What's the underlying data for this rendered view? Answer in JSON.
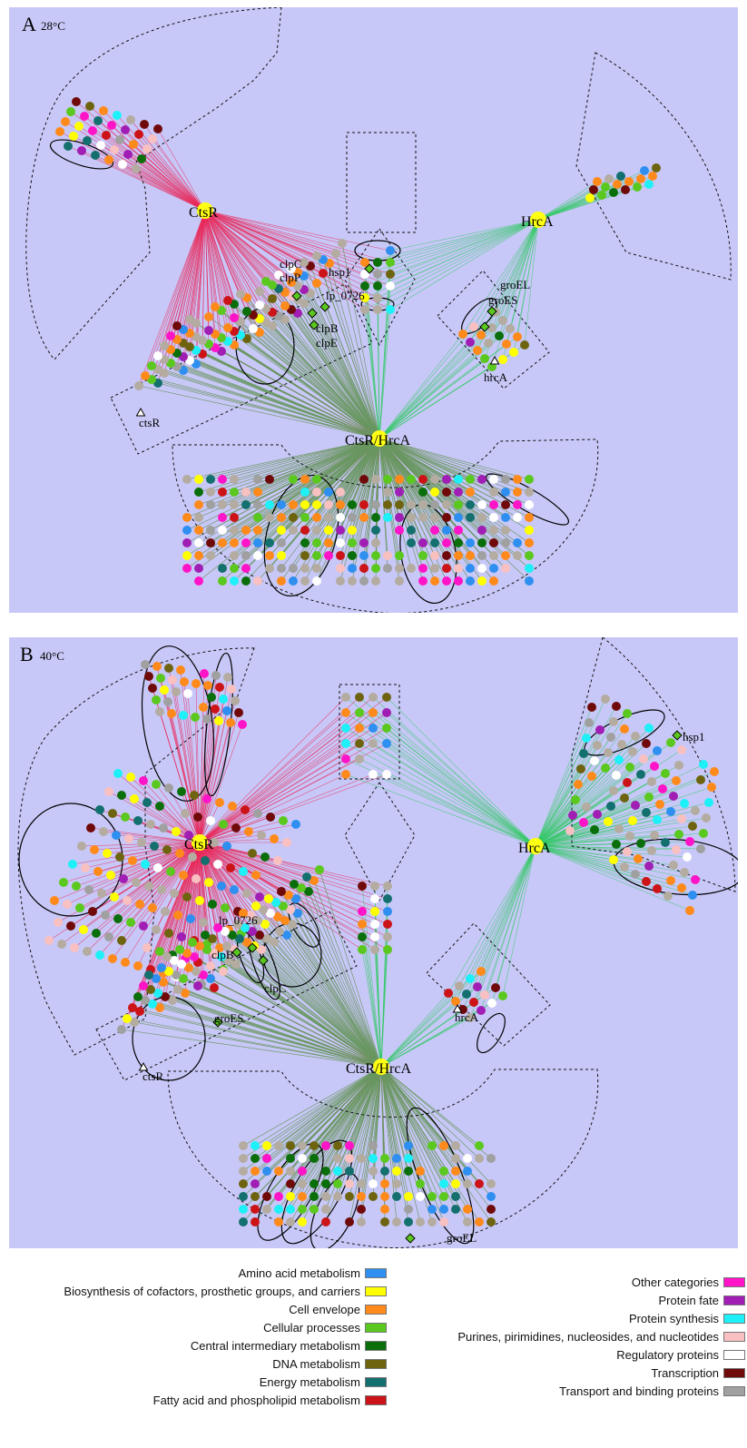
{
  "panels": [
    {
      "letter": "A",
      "temperature": "28°C",
      "hubs": {
        "ctsr": "CtsR",
        "hrca": "HrcA",
        "both": "CtsR/HrcA"
      },
      "gene_labels": {
        "clpC": "clpC",
        "clpP": "clpP",
        "lp_0726": "lp_0726",
        "clpB": "clpB",
        "clpE": "clpE",
        "hsp1": "hsp1",
        "groEL": "groEL",
        "groES": "groES",
        "hrcA": "hrcA",
        "ctsR": "ctsR"
      }
    },
    {
      "letter": "B",
      "temperature": "40°C",
      "hubs": {
        "ctsr": "CtsR",
        "hrca": "HrcA",
        "both": "CtsR/HrcA"
      },
      "gene_labels": {
        "hsp1": "hsp1",
        "lp_0726": "lp_0726",
        "clpB": "clpB",
        "clpC": "clpC",
        "groES": "groES",
        "ctsR": "ctsR",
        "hrcA": "hrcA",
        "groEL": "groEL"
      }
    }
  ],
  "legend": {
    "left": [
      {
        "label": "Amino acid metabolism",
        "color": "#2e8ff0"
      },
      {
        "label": "Biosynthesis of cofactors, prosthetic groups, and carriers",
        "color": "#ffff00"
      },
      {
        "label": "Cell envelope",
        "color": "#ff8a1c"
      },
      {
        "label": "Cellular processes",
        "color": "#5ac81e"
      },
      {
        "label": "Central intermediary metabolism",
        "color": "#0a6e0a"
      },
      {
        "label": "DNA metabolism",
        "color": "#6e6410"
      },
      {
        "label": "Energy metabolism",
        "color": "#14706e"
      },
      {
        "label": "Fatty acid and phospholipid metabolism",
        "color": "#cc1418"
      }
    ],
    "right": [
      {
        "label": "Other categories",
        "color": "#ff14c8"
      },
      {
        "label": "Protein fate",
        "color": "#a01eb4"
      },
      {
        "label": "Protein synthesis",
        "color": "#1ef0f8"
      },
      {
        "label": "Purines, pirimidines, nucleosides, and nucleotides",
        "color": "#f8c0c0"
      },
      {
        "label": "Regulatory proteins",
        "color": "#ffffff"
      },
      {
        "label": "Transcription",
        "color": "#700a0a"
      },
      {
        "label": "Transport and binding proteins",
        "color": "#a0a0a0"
      }
    ]
  },
  "colors": {
    "panel_bg": "#c8c8f8",
    "ctsr_edge": "#e8285a",
    "hrca_edge": "#32c864",
    "hub_fill": "#ffff14",
    "gray_node": "#b4aca0"
  }
}
